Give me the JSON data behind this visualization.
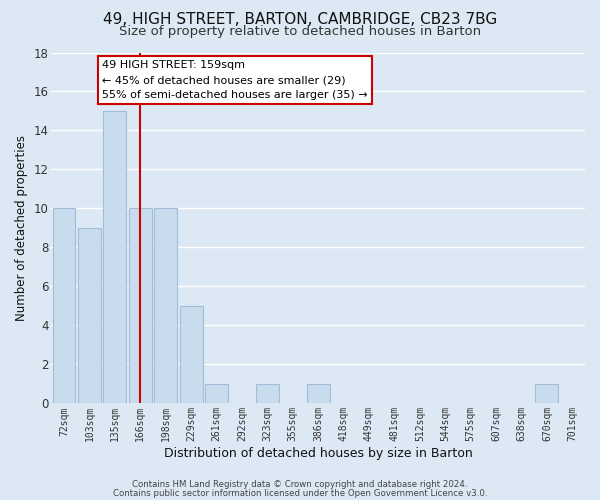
{
  "title": "49, HIGH STREET, BARTON, CAMBRIDGE, CB23 7BG",
  "subtitle": "Size of property relative to detached houses in Barton",
  "xlabel": "Distribution of detached houses by size in Barton",
  "ylabel": "Number of detached properties",
  "bin_labels": [
    "72sqm",
    "103sqm",
    "135sqm",
    "166sqm",
    "198sqm",
    "229sqm",
    "261sqm",
    "292sqm",
    "323sqm",
    "355sqm",
    "386sqm",
    "418sqm",
    "449sqm",
    "481sqm",
    "512sqm",
    "544sqm",
    "575sqm",
    "607sqm",
    "638sqm",
    "670sqm",
    "701sqm"
  ],
  "bar_values": [
    10,
    9,
    15,
    10,
    10,
    5,
    1,
    0,
    1,
    0,
    1,
    0,
    0,
    0,
    0,
    0,
    0,
    0,
    0,
    1,
    0
  ],
  "bar_color": "#c9dced",
  "bar_edge_color": "#a0bcd8",
  "grid_color": "#ffffff",
  "bg_color": "#dce9f5",
  "subject_line_color": "#cc0000",
  "annotation_text": "49 HIGH STREET: 159sqm\n← 45% of detached houses are smaller (29)\n55% of semi-detached houses are larger (35) →",
  "annotation_box_color": "#ffffff",
  "annotation_box_edge": "#cc0000",
  "ylim": [
    0,
    18
  ],
  "yticks": [
    0,
    2,
    4,
    6,
    8,
    10,
    12,
    14,
    16,
    18
  ],
  "footer_line1": "Contains HM Land Registry data © Crown copyright and database right 2024.",
  "footer_line2": "Contains public sector information licensed under the Open Government Licence v3.0.",
  "title_fontsize": 11,
  "subtitle_fontsize": 9.5,
  "xlabel_fontsize": 9,
  "ylabel_fontsize": 8.5,
  "annotation_fontsize": 8,
  "subject_line_idx": 3
}
